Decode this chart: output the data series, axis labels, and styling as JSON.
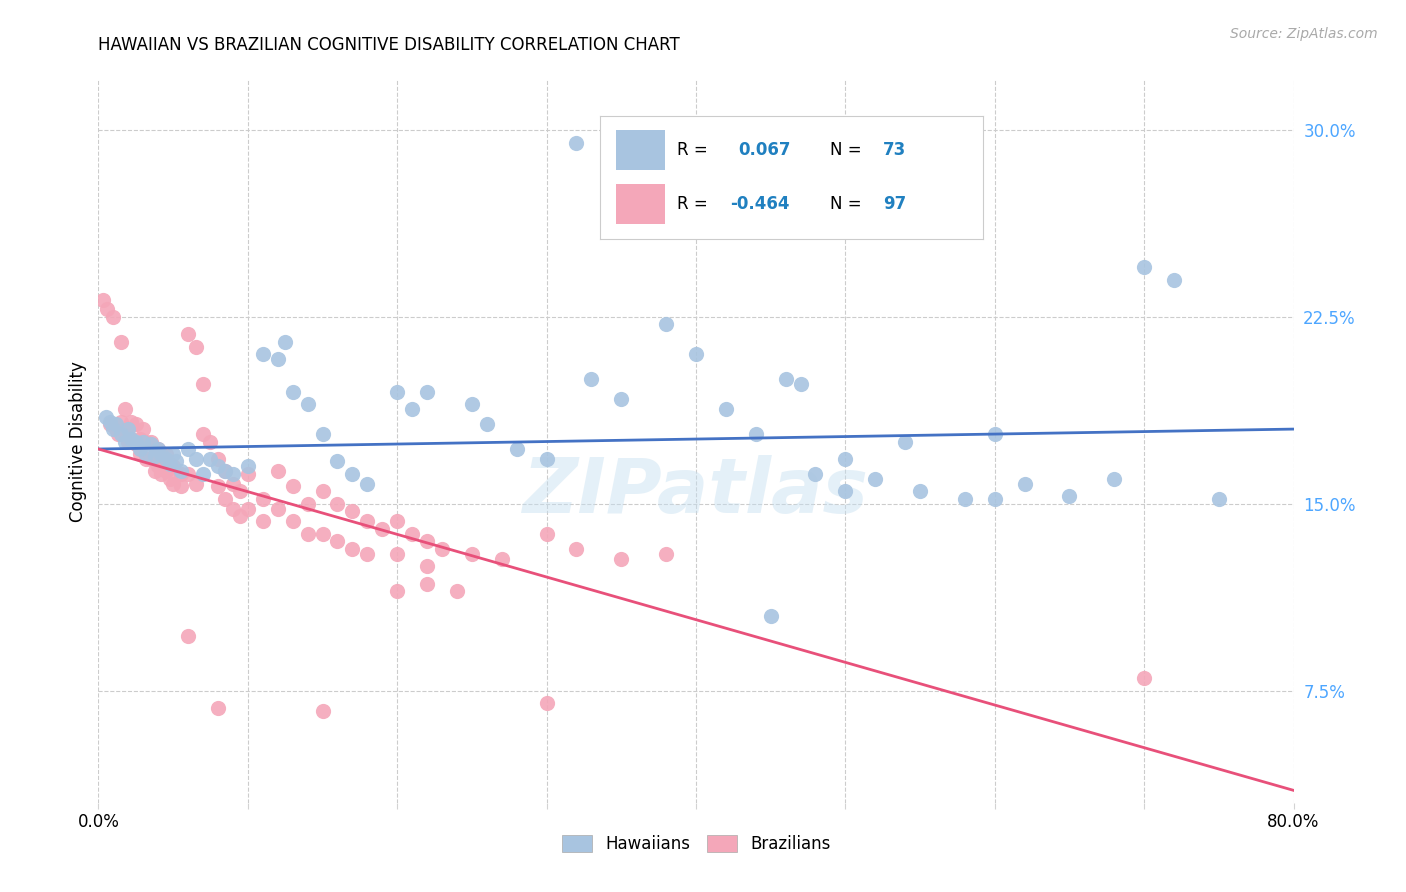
{
  "title": "HAWAIIAN VS BRAZILIAN COGNITIVE DISABILITY CORRELATION CHART",
  "source": "Source: ZipAtlas.com",
  "ylabel": "Cognitive Disability",
  "xlim": [
    0.0,
    0.8
  ],
  "ylim": [
    0.03,
    0.32
  ],
  "yticks": [
    0.075,
    0.15,
    0.225,
    0.3
  ],
  "ytick_labels": [
    "7.5%",
    "15.0%",
    "22.5%",
    "30.0%"
  ],
  "xticks": [
    0.0,
    0.1,
    0.2,
    0.3,
    0.4,
    0.5,
    0.6,
    0.7,
    0.8
  ],
  "hawaiians_R": 0.067,
  "hawaiians_N": 73,
  "brazilians_R": -0.464,
  "brazilians_N": 97,
  "hawaiian_color": "#a8c4e0",
  "brazilian_color": "#f4a7b9",
  "trend_hawaiian_color": "#4472c4",
  "trend_brazilian_color": "#e8507a",
  "legend_R_color": "#2080c0",
  "watermark": "ZIPatlas",
  "hawaiian_scatter": [
    [
      0.005,
      0.185
    ],
    [
      0.008,
      0.183
    ],
    [
      0.01,
      0.18
    ],
    [
      0.012,
      0.182
    ],
    [
      0.015,
      0.178
    ],
    [
      0.018,
      0.175
    ],
    [
      0.02,
      0.18
    ],
    [
      0.022,
      0.176
    ],
    [
      0.025,
      0.175
    ],
    [
      0.028,
      0.172
    ],
    [
      0.03,
      0.175
    ],
    [
      0.032,
      0.17
    ],
    [
      0.035,
      0.174
    ],
    [
      0.038,
      0.169
    ],
    [
      0.04,
      0.172
    ],
    [
      0.042,
      0.17
    ],
    [
      0.045,
      0.168
    ],
    [
      0.048,
      0.166
    ],
    [
      0.05,
      0.17
    ],
    [
      0.052,
      0.167
    ],
    [
      0.055,
      0.163
    ],
    [
      0.06,
      0.172
    ],
    [
      0.065,
      0.168
    ],
    [
      0.07,
      0.162
    ],
    [
      0.075,
      0.168
    ],
    [
      0.08,
      0.165
    ],
    [
      0.085,
      0.163
    ],
    [
      0.09,
      0.162
    ],
    [
      0.1,
      0.165
    ],
    [
      0.11,
      0.21
    ],
    [
      0.12,
      0.208
    ],
    [
      0.125,
      0.215
    ],
    [
      0.13,
      0.195
    ],
    [
      0.14,
      0.19
    ],
    [
      0.15,
      0.178
    ],
    [
      0.16,
      0.167
    ],
    [
      0.17,
      0.162
    ],
    [
      0.18,
      0.158
    ],
    [
      0.2,
      0.195
    ],
    [
      0.21,
      0.188
    ],
    [
      0.22,
      0.195
    ],
    [
      0.25,
      0.19
    ],
    [
      0.26,
      0.182
    ],
    [
      0.28,
      0.172
    ],
    [
      0.3,
      0.168
    ],
    [
      0.32,
      0.295
    ],
    [
      0.33,
      0.2
    ],
    [
      0.35,
      0.192
    ],
    [
      0.38,
      0.222
    ],
    [
      0.4,
      0.21
    ],
    [
      0.42,
      0.188
    ],
    [
      0.44,
      0.178
    ],
    [
      0.46,
      0.2
    ],
    [
      0.47,
      0.198
    ],
    [
      0.48,
      0.162
    ],
    [
      0.5,
      0.168
    ],
    [
      0.5,
      0.155
    ],
    [
      0.52,
      0.16
    ],
    [
      0.54,
      0.175
    ],
    [
      0.55,
      0.155
    ],
    [
      0.58,
      0.152
    ],
    [
      0.6,
      0.152
    ],
    [
      0.6,
      0.178
    ],
    [
      0.62,
      0.158
    ],
    [
      0.65,
      0.153
    ],
    [
      0.68,
      0.16
    ],
    [
      0.7,
      0.245
    ],
    [
      0.72,
      0.24
    ],
    [
      0.75,
      0.152
    ],
    [
      0.45,
      0.105
    ]
  ],
  "brazilian_scatter": [
    [
      0.003,
      0.232
    ],
    [
      0.006,
      0.228
    ],
    [
      0.008,
      0.182
    ],
    [
      0.01,
      0.225
    ],
    [
      0.012,
      0.18
    ],
    [
      0.013,
      0.178
    ],
    [
      0.015,
      0.215
    ],
    [
      0.015,
      0.183
    ],
    [
      0.017,
      0.178
    ],
    [
      0.018,
      0.188
    ],
    [
      0.02,
      0.18
    ],
    [
      0.02,
      0.175
    ],
    [
      0.022,
      0.183
    ],
    [
      0.022,
      0.176
    ],
    [
      0.025,
      0.182
    ],
    [
      0.025,
      0.174
    ],
    [
      0.028,
      0.176
    ],
    [
      0.028,
      0.17
    ],
    [
      0.03,
      0.18
    ],
    [
      0.03,
      0.174
    ],
    [
      0.032,
      0.175
    ],
    [
      0.032,
      0.168
    ],
    [
      0.035,
      0.175
    ],
    [
      0.035,
      0.168
    ],
    [
      0.038,
      0.17
    ],
    [
      0.038,
      0.163
    ],
    [
      0.04,
      0.172
    ],
    [
      0.04,
      0.165
    ],
    [
      0.042,
      0.168
    ],
    [
      0.042,
      0.162
    ],
    [
      0.045,
      0.17
    ],
    [
      0.045,
      0.163
    ],
    [
      0.048,
      0.166
    ],
    [
      0.048,
      0.16
    ],
    [
      0.05,
      0.165
    ],
    [
      0.05,
      0.158
    ],
    [
      0.055,
      0.162
    ],
    [
      0.055,
      0.157
    ],
    [
      0.06,
      0.218
    ],
    [
      0.06,
      0.162
    ],
    [
      0.065,
      0.213
    ],
    [
      0.065,
      0.158
    ],
    [
      0.07,
      0.198
    ],
    [
      0.07,
      0.178
    ],
    [
      0.075,
      0.175
    ],
    [
      0.08,
      0.168
    ],
    [
      0.08,
      0.157
    ],
    [
      0.085,
      0.163
    ],
    [
      0.085,
      0.152
    ],
    [
      0.09,
      0.158
    ],
    [
      0.09,
      0.148
    ],
    [
      0.095,
      0.155
    ],
    [
      0.095,
      0.145
    ],
    [
      0.1,
      0.162
    ],
    [
      0.1,
      0.148
    ],
    [
      0.11,
      0.152
    ],
    [
      0.11,
      0.143
    ],
    [
      0.12,
      0.163
    ],
    [
      0.12,
      0.148
    ],
    [
      0.13,
      0.157
    ],
    [
      0.13,
      0.143
    ],
    [
      0.14,
      0.15
    ],
    [
      0.14,
      0.138
    ],
    [
      0.15,
      0.155
    ],
    [
      0.15,
      0.138
    ],
    [
      0.16,
      0.15
    ],
    [
      0.16,
      0.135
    ],
    [
      0.17,
      0.147
    ],
    [
      0.17,
      0.132
    ],
    [
      0.18,
      0.143
    ],
    [
      0.18,
      0.13
    ],
    [
      0.19,
      0.14
    ],
    [
      0.2,
      0.143
    ],
    [
      0.2,
      0.13
    ],
    [
      0.21,
      0.138
    ],
    [
      0.22,
      0.135
    ],
    [
      0.22,
      0.125
    ],
    [
      0.23,
      0.132
    ],
    [
      0.25,
      0.13
    ],
    [
      0.27,
      0.128
    ],
    [
      0.3,
      0.138
    ],
    [
      0.32,
      0.132
    ],
    [
      0.35,
      0.128
    ],
    [
      0.38,
      0.13
    ],
    [
      0.2,
      0.115
    ],
    [
      0.22,
      0.118
    ],
    [
      0.24,
      0.115
    ],
    [
      0.06,
      0.097
    ],
    [
      0.08,
      0.068
    ],
    [
      0.15,
      0.067
    ],
    [
      0.3,
      0.07
    ],
    [
      0.7,
      0.08
    ]
  ]
}
